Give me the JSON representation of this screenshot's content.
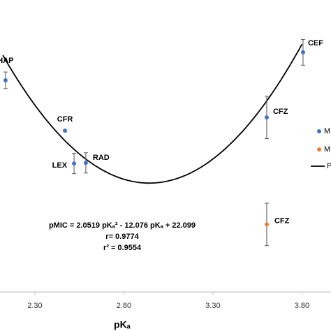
{
  "chart_data": {
    "type": "scatter",
    "xlabel": "pKₐ",
    "xlim": [
      2.104,
      3.963
    ],
    "ylim": [
      3.15,
      6.32
    ],
    "xticks": [
      {
        "value": 2.3,
        "label": "2.30"
      },
      {
        "value": 2.8,
        "label": "2.80"
      },
      {
        "value": 3.3,
        "label": "3.30"
      },
      {
        "value": 3.8,
        "label": "3.80"
      }
    ],
    "series": [
      {
        "name": "M",
        "color": "#4472c4",
        "labels": [
          "HAP",
          "CFR",
          "LEX",
          "RAD",
          "CFZ",
          "CEF"
        ],
        "x": [
          2.135,
          2.469,
          2.52,
          2.586,
          3.602,
          3.806
        ],
        "values": [
          5.448,
          4.901,
          4.544,
          4.551,
          5.045,
          5.752
        ],
        "errors": [
          0.09,
          null,
          0.11,
          0.11,
          0.23,
          0.14
        ]
      },
      {
        "name": "M",
        "color": "#ed7d31",
        "labels": [
          "CFZ"
        ],
        "x": [
          3.602
        ],
        "values": [
          3.883
        ],
        "errors": [
          0.23
        ]
      }
    ],
    "fit": {
      "name": "P",
      "color": "#000000",
      "coefficients": [
        2.0519,
        -12.076,
        22.099
      ],
      "xrange": [
        2.12,
        3.8
      ]
    },
    "annotations": [
      "pMIC = 2.0519 pKₐ² - 12.076 pKₐ + 22.099",
      "r= 0.9774",
      "r² = 0.9554"
    ]
  }
}
